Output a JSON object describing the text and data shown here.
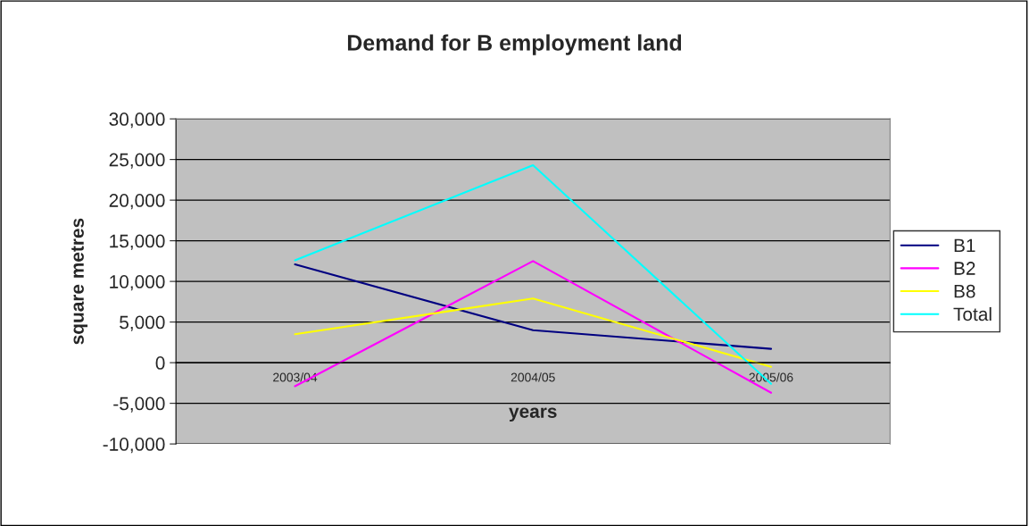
{
  "chart_data": {
    "type": "line",
    "title": "Demand for B employment land",
    "xlabel": "years",
    "ylabel": "square metres",
    "categories": [
      "2003/04",
      "2004/05",
      "2005/06"
    ],
    "series": [
      {
        "name": "B1",
        "color": "#000080",
        "values": [
          12100,
          4000,
          1700
        ]
      },
      {
        "name": "B2",
        "color": "#ff00ff",
        "values": [
          -2900,
          12500,
          -3700
        ]
      },
      {
        "name": "B8",
        "color": "#ffff00",
        "values": [
          3500,
          7900,
          -500
        ]
      },
      {
        "name": "Total",
        "color": "#00ffff",
        "values": [
          12600,
          24300,
          -2600
        ]
      }
    ],
    "ylim": [
      -10000,
      30000
    ],
    "yticks": [
      {
        "value": -10000,
        "label": "-10,000"
      },
      {
        "value": -5000,
        "label": "-5,000"
      },
      {
        "value": 0,
        "label": "0"
      },
      {
        "value": 5000,
        "label": "5,000"
      },
      {
        "value": 10000,
        "label": "10,000"
      },
      {
        "value": 15000,
        "label": "15,000"
      },
      {
        "value": 20000,
        "label": "20,000"
      },
      {
        "value": 25000,
        "label": "25,000"
      },
      {
        "value": 30000,
        "label": "30,000"
      }
    ],
    "grid": "y",
    "legend": "right",
    "marker": "none",
    "line_style": "solid"
  }
}
